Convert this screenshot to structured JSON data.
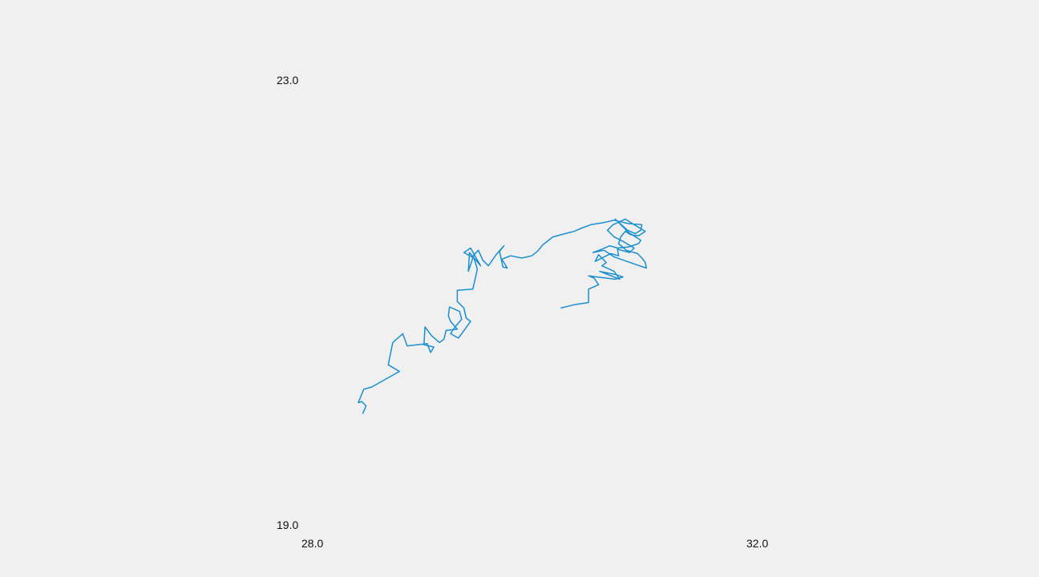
{
  "chart_data": {
    "type": "line",
    "title": "",
    "xlabel": "",
    "ylabel": "",
    "xlim": [
      28.0,
      32.0
    ],
    "ylim": [
      19.0,
      23.0
    ],
    "grid": false,
    "x_tick_labels": [
      "28.0",
      "32.0"
    ],
    "y_tick_labels": [
      "23.0",
      "19.0"
    ],
    "series": [
      {
        "color": "#1a8fd0",
        "points": [
          [
            30.23,
            20.95
          ],
          [
            30.35,
            20.98
          ],
          [
            30.48,
            21.0
          ],
          [
            30.48,
            21.12
          ],
          [
            30.57,
            21.16
          ],
          [
            30.53,
            21.22
          ],
          [
            30.48,
            21.24
          ],
          [
            30.72,
            21.21
          ],
          [
            30.79,
            21.23
          ],
          [
            30.73,
            21.25
          ],
          [
            30.58,
            21.28
          ],
          [
            30.76,
            21.21
          ],
          [
            30.71,
            21.28
          ],
          [
            30.6,
            21.33
          ],
          [
            30.64,
            21.36
          ],
          [
            30.57,
            21.43
          ],
          [
            30.54,
            21.37
          ],
          [
            30.68,
            21.44
          ],
          [
            30.75,
            21.42
          ],
          [
            30.74,
            21.48
          ],
          [
            30.85,
            21.45
          ],
          [
            30.89,
            21.49
          ],
          [
            30.79,
            21.55
          ],
          [
            30.71,
            21.59
          ],
          [
            30.65,
            21.65
          ],
          [
            30.7,
            21.7
          ],
          [
            30.81,
            21.75
          ],
          [
            30.89,
            21.7
          ],
          [
            30.99,
            21.64
          ],
          [
            30.93,
            21.6
          ],
          [
            30.86,
            21.61
          ],
          [
            30.81,
            21.64
          ],
          [
            30.77,
            21.59
          ],
          [
            30.75,
            21.53
          ],
          [
            30.82,
            21.47
          ],
          [
            30.92,
            21.44
          ],
          [
            30.96,
            21.4
          ],
          [
            30.99,
            21.36
          ],
          [
            31.0,
            21.31
          ],
          [
            30.91,
            21.34
          ],
          [
            30.71,
            21.41
          ],
          [
            30.62,
            21.47
          ],
          [
            30.52,
            21.45
          ],
          [
            30.6,
            21.48
          ],
          [
            30.67,
            21.51
          ],
          [
            30.74,
            21.49
          ],
          [
            30.84,
            21.5
          ],
          [
            30.93,
            21.53
          ],
          [
            30.95,
            21.56
          ],
          [
            30.84,
            21.63
          ],
          [
            30.72,
            21.75
          ],
          [
            30.83,
            21.65
          ],
          [
            30.9,
            21.62
          ],
          [
            30.95,
            21.65
          ],
          [
            30.96,
            21.7
          ],
          [
            30.84,
            21.71
          ],
          [
            30.71,
            21.74
          ],
          [
            30.62,
            21.72
          ],
          [
            30.5,
            21.7
          ],
          [
            30.42,
            21.67
          ],
          [
            30.35,
            21.64
          ],
          [
            30.27,
            21.62
          ],
          [
            30.16,
            21.59
          ],
          [
            30.07,
            21.52
          ],
          [
            30.02,
            21.46
          ],
          [
            29.97,
            21.42
          ],
          [
            29.88,
            21.4
          ],
          [
            29.78,
            21.42
          ],
          [
            29.7,
            21.39
          ],
          [
            29.75,
            21.31
          ],
          [
            29.71,
            21.32
          ],
          [
            29.68,
            21.46
          ],
          [
            29.72,
            21.51
          ],
          [
            29.65,
            21.43
          ],
          [
            29.58,
            21.33
          ],
          [
            29.53,
            21.38
          ],
          [
            29.49,
            21.47
          ],
          [
            29.45,
            21.43
          ],
          [
            29.4,
            21.28
          ],
          [
            29.41,
            21.45
          ],
          [
            29.51,
            21.33
          ],
          [
            29.42,
            21.49
          ],
          [
            29.36,
            21.45
          ],
          [
            29.45,
            21.4
          ],
          [
            29.48,
            21.3
          ],
          [
            29.44,
            21.12
          ],
          [
            29.3,
            21.11
          ],
          [
            29.3,
            21.01
          ],
          [
            29.36,
            20.95
          ],
          [
            29.38,
            20.86
          ],
          [
            29.42,
            20.83
          ],
          [
            29.31,
            20.68
          ],
          [
            29.24,
            20.72
          ],
          [
            29.28,
            20.78
          ],
          [
            29.34,
            20.85
          ],
          [
            29.32,
            20.92
          ],
          [
            29.23,
            20.96
          ],
          [
            29.22,
            20.88
          ],
          [
            29.24,
            20.83
          ],
          [
            29.3,
            20.76
          ],
          [
            29.2,
            20.75
          ],
          [
            29.18,
            20.67
          ],
          [
            29.14,
            20.64
          ],
          [
            29.07,
            20.7
          ],
          [
            29.01,
            20.78
          ],
          [
            29.0,
            20.62
          ],
          [
            29.09,
            20.6
          ],
          [
            29.06,
            20.55
          ],
          [
            29.03,
            20.63
          ],
          [
            28.85,
            20.61
          ],
          [
            28.81,
            20.72
          ],
          [
            28.72,
            20.64
          ],
          [
            28.68,
            20.44
          ],
          [
            28.78,
            20.38
          ],
          [
            28.53,
            20.24
          ],
          [
            28.46,
            20.22
          ],
          [
            28.41,
            20.1
          ],
          [
            28.44,
            20.11
          ],
          [
            28.48,
            20.07
          ],
          [
            28.45,
            20.0
          ]
        ]
      }
    ]
  }
}
